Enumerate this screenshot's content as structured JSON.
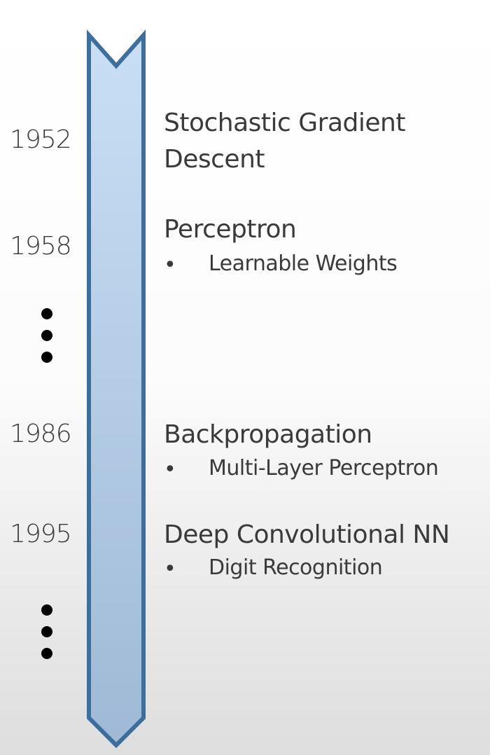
{
  "colors": {
    "arrow_fill_top": "#c9dff5",
    "arrow_fill_bottom": "#9fb9d6",
    "arrow_stroke": "#3e6f9c",
    "text": "#3a3a3a"
  },
  "events": [
    {
      "year": "1952",
      "title_line1": "Stochastic Gradient",
      "title_line2": "Descent",
      "bullet": ""
    },
    {
      "year": "1958",
      "title_line1": "Perceptron",
      "title_line2": "",
      "bullet": "Learnable Weights"
    },
    {
      "year": "1986",
      "title_line1": "Backpropagation",
      "title_line2": "",
      "bullet": "Multi-Layer Perceptron"
    },
    {
      "year": "1995",
      "title_line1": "Deep Convolutional NN",
      "title_line2": "",
      "bullet": "Digit Recognition"
    }
  ],
  "bullet_symbol": "•"
}
